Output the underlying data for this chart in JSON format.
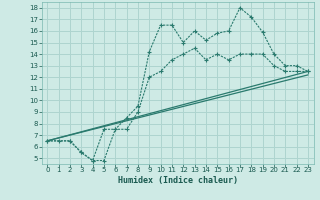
{
  "xlabel": "Humidex (Indice chaleur)",
  "bg_color": "#ceeae5",
  "grid_color": "#aed4cf",
  "line_color": "#2a7a6e",
  "xlim": [
    -0.5,
    23.5
  ],
  "ylim": [
    4.5,
    18.5
  ],
  "xticks": [
    0,
    1,
    2,
    3,
    4,
    5,
    6,
    7,
    8,
    9,
    10,
    11,
    12,
    13,
    14,
    15,
    16,
    17,
    18,
    19,
    20,
    21,
    22,
    23
  ],
  "yticks": [
    5,
    6,
    7,
    8,
    9,
    10,
    11,
    12,
    13,
    14,
    15,
    16,
    17,
    18
  ],
  "line1_x": [
    0,
    1,
    2,
    3,
    4,
    5,
    6,
    7,
    8,
    9,
    10,
    11,
    12,
    13,
    14,
    15,
    16,
    17,
    18,
    19,
    20,
    21,
    22,
    23
  ],
  "line1_y": [
    6.5,
    6.5,
    6.5,
    5.5,
    4.8,
    7.5,
    7.5,
    8.5,
    9.5,
    14.2,
    16.5,
    16.5,
    15.0,
    16.0,
    15.2,
    15.8,
    16.0,
    18.0,
    17.2,
    15.9,
    14.0,
    13.0,
    13.0,
    12.5
  ],
  "line2_x": [
    0,
    2,
    3,
    4,
    5,
    6,
    7,
    8,
    9,
    10,
    11,
    12,
    13,
    14,
    15,
    16,
    17,
    18,
    19,
    20,
    21,
    22,
    23
  ],
  "line2_y": [
    6.5,
    6.5,
    5.5,
    4.8,
    4.8,
    7.5,
    7.5,
    9.0,
    12.0,
    12.5,
    13.5,
    14.0,
    14.5,
    13.5,
    14.0,
    13.5,
    14.0,
    14.0,
    14.0,
    13.0,
    12.5,
    12.5,
    12.5
  ],
  "line3_x": [
    0,
    23
  ],
  "line3_y": [
    6.5,
    12.5
  ],
  "line4_x": [
    0,
    23
  ],
  "line4_y": [
    6.5,
    12.2
  ]
}
